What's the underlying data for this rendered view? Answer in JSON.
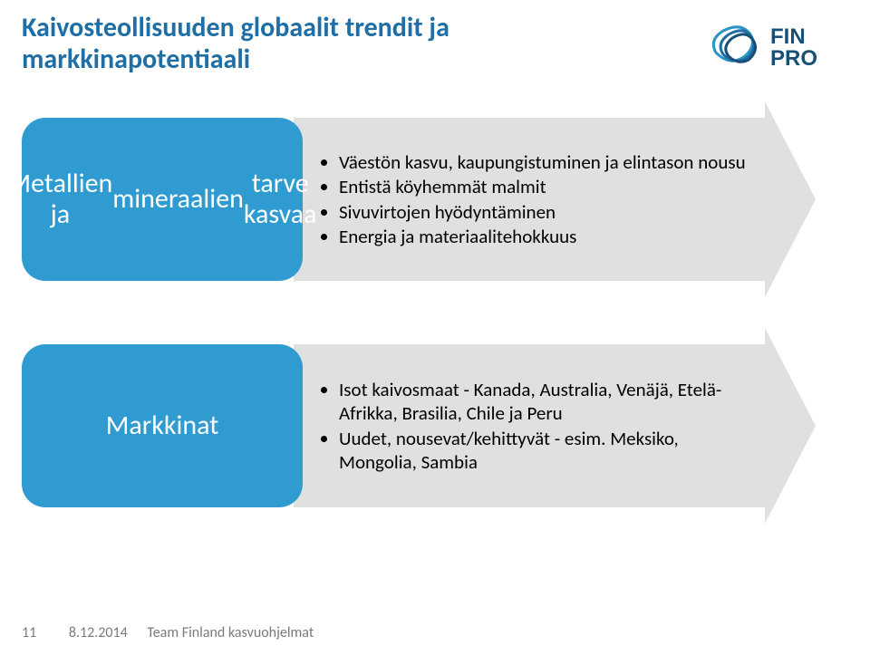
{
  "title": "Kaivosteollisuuden globaalit trendit ja markkinapotentiaali",
  "logo": {
    "text_top": "FIN",
    "text_bottom": "PRO",
    "stroke_colors": [
      "#2a93c7",
      "#1f6fa6",
      "#174f77"
    ],
    "text_color": "#174f77"
  },
  "rows": [
    {
      "label_lines": [
        "Metallien ja",
        "mineraalien",
        "tarve kasvaa"
      ],
      "label_bg": "#2f9bd0",
      "arrow_bg": "#e0e0e0",
      "bullets": [
        "Väestön kasvu, kaupungistuminen ja elintason nousu",
        "Entistä köyhemmät malmit",
        "Sivuvirtojen hyödyntäminen",
        "Energia ja materiaalitehokkuus"
      ]
    },
    {
      "label_lines": [
        "Markkinat"
      ],
      "label_bg": "#2f9bd0",
      "arrow_bg": "#e0e0e0",
      "bullets": [
        "Isot kaivosmaat - Kanada, Australia, Venäjä, Etelä-Afrikka, Brasilia, Chile ja Peru",
        "Uudet, nousevat/kehittyvät - esim. Meksiko, Mongolia, Sambia"
      ]
    }
  ],
  "footer": {
    "page": "11",
    "date": "8.12.2014",
    "text": "Team Finland kasvuohjelmat",
    "color": "#7a7a7a"
  }
}
